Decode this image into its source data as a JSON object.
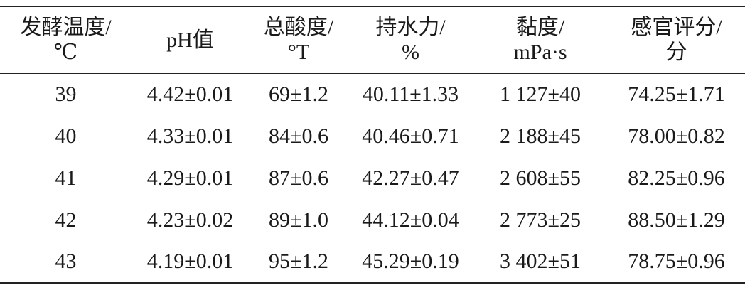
{
  "table": {
    "header": [
      [
        "发酵温度/",
        "℃"
      ],
      [
        "pH值"
      ],
      [
        "总酸度/",
        "°T"
      ],
      [
        "持水力/",
        "%"
      ],
      [
        "黏度/",
        "mPa·s"
      ],
      [
        "感官评分/",
        "分"
      ]
    ],
    "rows": [
      [
        "39",
        "4.42±0.01",
        "69±1.2",
        "40.11±1.33",
        "1 127±40",
        "74.25±1.71"
      ],
      [
        "40",
        "4.33±0.01",
        "84±0.6",
        "40.46±0.71",
        "2 188±45",
        "78.00±0.82"
      ],
      [
        "41",
        "4.29±0.01",
        "87±0.6",
        "42.27±0.47",
        "2 608±55",
        "82.25±0.96"
      ],
      [
        "42",
        "4.23±0.02",
        "89±1.0",
        "44.12±0.04",
        "2 773±25",
        "88.50±1.29"
      ],
      [
        "43",
        "4.19±0.01",
        "95±1.2",
        "45.29±0.19",
        "3 402±51",
        "78.75±0.96"
      ]
    ]
  }
}
